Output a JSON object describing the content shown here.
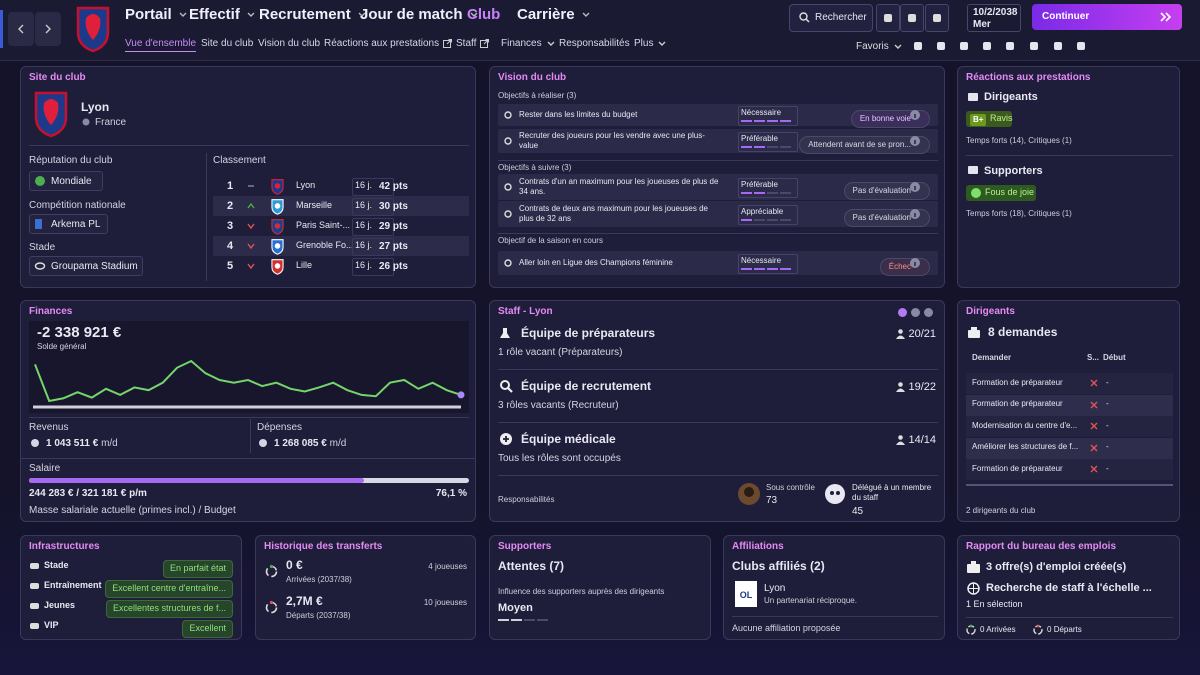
{
  "nav": {
    "tabs": [
      "Portail",
      "Effectif",
      "Recrutement",
      "Jour de match",
      "Club",
      "Carrière"
    ],
    "subtabs": [
      "Vue d'ensemble",
      "Site du club",
      "Vision du club",
      "Réactions aux prestations",
      "Staff",
      "Finances",
      "Responsabilités",
      "Plus"
    ],
    "search": "Rechercher",
    "date": "10/2/2038",
    "weekday": "Mer",
    "continue": "Continuer",
    "favorites": "Favoris"
  },
  "club_site": {
    "title": "Site du club",
    "name": "Lyon",
    "country": "France",
    "reputation_label": "Réputation du club",
    "reputation": "Mondiale",
    "competition_label": "Compétition nationale",
    "competition": "Arkema PL",
    "stadium_label": "Stade",
    "stadium": "Groupama Stadium",
    "standings_label": "Classement",
    "standings": [
      {
        "position": 1,
        "team": "Lyon",
        "played": "16 j.",
        "points": "42 pts"
      },
      {
        "position": 2,
        "team": "Marseille",
        "played": "16 j.",
        "points": "30 pts"
      },
      {
        "position": 3,
        "team": "Paris Saint-...",
        "played": "16 j.",
        "points": "29 pts"
      },
      {
        "position": 4,
        "team": "Grenoble Fo...",
        "played": "16 j.",
        "points": "27 pts"
      },
      {
        "position": 5,
        "team": "Lille",
        "played": "16 j.",
        "points": "26 pts"
      }
    ]
  },
  "club_vision": {
    "title": "Vision du club",
    "groups": [
      {
        "label": "Objectifs à réaliser",
        "count": "(3)",
        "items": [
          {
            "text": "Rester dans les limites du budget",
            "level": "Nécessaire",
            "status": "En bonne voie"
          },
          {
            "text": "Recruter des joueurs pour les vendre avec une plus-value",
            "level": "Préférable",
            "status": "Attendent avant de se pron..."
          }
        ]
      },
      {
        "label": "Objectifs à suivre",
        "count": "(3)",
        "items": [
          {
            "text": "Contrats d'un an maximum pour les joueuses de plus de 34 ans.",
            "level": "Préférable",
            "status": "Pas d'évaluation"
          },
          {
            "text": "Contrats de deux ans maximum pour les joueuses de plus de 32 ans",
            "level": "Appréciable",
            "status": "Pas d'évaluation"
          }
        ]
      },
      {
        "label": "Objectif de la saison en cours",
        "items": [
          {
            "text": "Aller loin en Ligue des Champions féminine",
            "level": "Nécessaire",
            "status": "Échec"
          }
        ]
      }
    ]
  },
  "reactions": {
    "title": "Réactions aux prestations",
    "groups": [
      {
        "name": "Dirigeants",
        "grade": "B+",
        "mood": "Ravis",
        "highlights": "Temps forts (14),",
        "criticisms": "Critiques (1)"
      },
      {
        "name": "Supporters",
        "mood": "Fous de joie",
        "highlights": "Temps forts (18),",
        "criticisms": "Critiques (1)"
      }
    ]
  },
  "finances": {
    "title": "Finances",
    "balance": "-2 338 921 €",
    "balance_label": "Solde général",
    "balance_trend": [
      -1.89,
      -2.43,
      -2.39,
      -2.3,
      -2.38,
      -2.25,
      -2.34,
      -2.23,
      -2.27,
      -2.16,
      -1.94,
      -1.84,
      -2.02,
      -2.12,
      -2.16,
      -2.12,
      -2.21,
      -2.16,
      -2.25,
      -2.29,
      -2.23,
      -2.16,
      -2.27,
      -2.34,
      -2.36,
      -2.16,
      -2.12,
      -2.25,
      -2.16,
      -2.27,
      -2.34
    ],
    "revenue_label": "Revenus",
    "revenue": "1 043 511 €",
    "revenue_unit": "m/d",
    "expenses_label": "Dépenses",
    "expenses": "1 268 085 €",
    "expenses_unit": "m/d",
    "salary_label": "Salaire",
    "salary": "244 283 € / 321 181 € p/m",
    "salary_ratio": {
      "value": 76.1,
      "label": "76,1 %"
    },
    "salary_note": "Masse salariale actuelle (primes incl.) / Budget"
  },
  "staff": {
    "title": "Staff - Lyon",
    "teams": [
      {
        "name": "Équipe de préparateurs",
        "note": "1 rôle vacant (Préparateurs)",
        "count": "20/21"
      },
      {
        "name": "Équipe de recrutement",
        "note": "3 rôles vacants (Recruteur)",
        "count": "19/22"
      },
      {
        "name": "Équipe médicale",
        "note": "Tous les rôles sont occupés",
        "count": "14/14"
      }
    ],
    "responsibilities": "Responsabilités",
    "under_control_label": "Sous contrôle",
    "under_control": 73,
    "delegated_label": "Délégué à un membre du staff",
    "delegated": 45
  },
  "board": {
    "title": "Dirigeants",
    "requests": "8 demandes",
    "headers": [
      "Demander",
      "S...",
      "Début"
    ],
    "rows": [
      [
        "Formation de préparateur",
        "-"
      ],
      [
        "Formation de préparateur",
        "-"
      ],
      [
        "Modernisation du centre d'e...",
        "-"
      ],
      [
        "Améliorer les structures de f...",
        "-"
      ],
      [
        "Formation de préparateur",
        "-"
      ]
    ],
    "footer": "2 dirigeants du club"
  },
  "facilities": {
    "title": "Infrastructures",
    "rows": [
      {
        "name": "Stade",
        "rating": "En parfait état"
      },
      {
        "name": "Entraînement",
        "rating": "Excellent centre d'entraîne..."
      },
      {
        "name": "Jeunes",
        "rating": "Excellentes structures de f..."
      },
      {
        "name": "VIP",
        "rating": "Excellent"
      }
    ]
  },
  "transfers": {
    "title": "Historique des transferts",
    "arrivals": {
      "amount": "0 €",
      "label": "Arrivées (2037/38)",
      "players": "4 joueuses"
    },
    "departures": {
      "amount": "2,7M €",
      "label": "Départs (2037/38)",
      "players": "10 joueuses"
    }
  },
  "supporters": {
    "title": "Supporters",
    "expectations": "Attentes (7)",
    "influence_label": "Influence des supporters auprès des dirigeants",
    "influence": "Moyen"
  },
  "affiliations": {
    "title": "Affiliations",
    "heading": "Clubs affiliés (2)",
    "club": "Lyon",
    "description": "Un partenariat réciproque.",
    "footer": "Aucune affiliation proposée"
  },
  "jobs": {
    "title": "Rapport du bureau des emplois",
    "offers": "3 offre(s) d'emploi créée(s)",
    "search": "Recherche de staff à l'échelle ...",
    "selection": "1 En sélection",
    "arrivals": 0,
    "arrivals_label": "Arrivées",
    "departures": 0,
    "departures_label": "Départs"
  }
}
